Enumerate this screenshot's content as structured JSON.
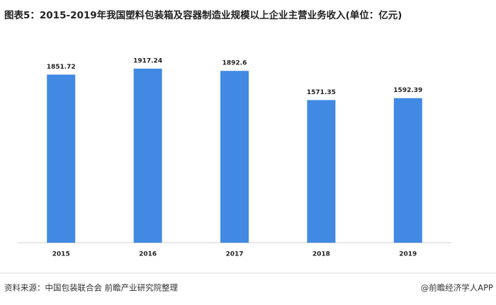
{
  "chart_data": {
    "type": "bar",
    "title": "图表5：2015-2019年我国塑料包装箱及容器制造业规模以上企业主营业务收入(单位：亿元)",
    "categories": [
      "2015",
      "2016",
      "2017",
      "2018",
      "2019"
    ],
    "values": [
      1851.72,
      1917.24,
      1892.6,
      1571.35,
      1592.39
    ],
    "color": "#4189e3",
    "source": "资料来源：中国包装联合会 前瞻产业研究院整理",
    "brand": "@前瞻经济学人APP"
  }
}
